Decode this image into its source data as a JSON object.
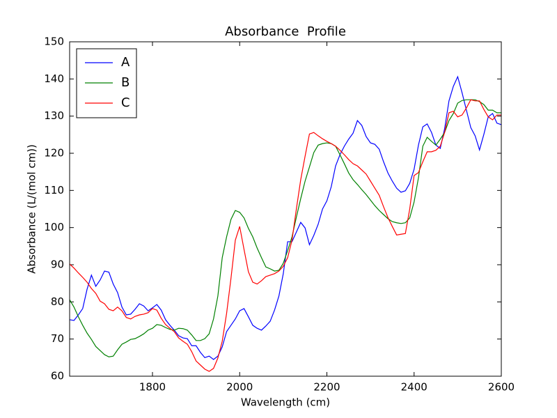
{
  "chart_data": {
    "type": "line",
    "title": "Absorbance  Profile",
    "xlabel": "Wavelength (cm)",
    "ylabel": "Absorbance (L/(mol cm))",
    "x": [
      1610,
      1620,
      1630,
      1640,
      1650,
      1660,
      1670,
      1680,
      1690,
      1700,
      1710,
      1720,
      1730,
      1740,
      1750,
      1760,
      1770,
      1780,
      1790,
      1800,
      1810,
      1820,
      1830,
      1840,
      1850,
      1860,
      1870,
      1880,
      1890,
      1900,
      1910,
      1920,
      1930,
      1940,
      1950,
      1960,
      1970,
      1980,
      1990,
      2000,
      2010,
      2020,
      2030,
      2040,
      2050,
      2060,
      2070,
      2080,
      2090,
      2100,
      2110,
      2120,
      2130,
      2140,
      2150,
      2160,
      2170,
      2180,
      2190,
      2200,
      2210,
      2220,
      2230,
      2240,
      2250,
      2260,
      2270,
      2280,
      2290,
      2300,
      2310,
      2320,
      2330,
      2340,
      2350,
      2360,
      2370,
      2380,
      2390,
      2400,
      2410,
      2420,
      2430,
      2440,
      2450,
      2460,
      2470,
      2480,
      2490,
      2500,
      2510,
      2520,
      2530,
      2540,
      2550,
      2560,
      2570,
      2580,
      2590,
      2600
    ],
    "series": [
      {
        "name": "A",
        "color": "#0000ff",
        "values": [
          75.2,
          75,
          76.5,
          78.2,
          83.4,
          87.2,
          84.2,
          85.9,
          88.3,
          88,
          84.8,
          82.5,
          78.6,
          76.5,
          76.7,
          78,
          79.5,
          78.9,
          77.6,
          78.4,
          79.3,
          77.8,
          75.2,
          73.7,
          72.4,
          70.9,
          70.3,
          70.1,
          68.2,
          68.2,
          66.4,
          65,
          65.4,
          64.5,
          65.4,
          67.9,
          72,
          73.7,
          75.4,
          77.6,
          78.2,
          76,
          73.7,
          72.9,
          72.4,
          73.5,
          74.8,
          77.8,
          81.6,
          87.6,
          96.2,
          96.2,
          98.8,
          101.4,
          99.9,
          95.4,
          97.9,
          100.9,
          105,
          107.2,
          111,
          116.6,
          119.6,
          121.9,
          123.8,
          125.4,
          128.8,
          127.5,
          124.5,
          122.8,
          122.4,
          121.1,
          117.7,
          114.7,
          112.5,
          110.6,
          109.5,
          109.9,
          111.9,
          115.7,
          122.2,
          127.1,
          127.9,
          125.6,
          122.2,
          121.3,
          126.6,
          134.1,
          138,
          140.6,
          136.3,
          131.6,
          126.9,
          124.7,
          120.9,
          125.1,
          129.8,
          130.7,
          128.1,
          127.7
        ]
      },
      {
        "name": "B",
        "color": "#008000",
        "values": [
          80.6,
          78.6,
          76,
          73.7,
          71.6,
          69.9,
          68,
          66.9,
          65.8,
          65.2,
          65.4,
          67.1,
          68.6,
          69.2,
          69.9,
          70.1,
          70.7,
          71.4,
          72.4,
          72.9,
          73.9,
          73.7,
          73.1,
          72.6,
          72.4,
          72.9,
          72.8,
          72.4,
          71.1,
          69.6,
          69.6,
          70.1,
          71.4,
          75.4,
          81.6,
          91.9,
          97.5,
          102.2,
          104.6,
          104.1,
          102.6,
          99.8,
          97.5,
          94.5,
          91.9,
          89.4,
          88.9,
          88.3,
          88.5,
          90.4,
          93.8,
          97.5,
          102.8,
          107.8,
          112.5,
          116.3,
          120.2,
          122.2,
          122.6,
          122.8,
          122.6,
          121.9,
          119.6,
          117.2,
          114.7,
          112.9,
          111.6,
          110.2,
          108.9,
          107.4,
          105.9,
          104.6,
          103.5,
          102.4,
          101.6,
          101.3,
          101.1,
          101.3,
          102.6,
          106.9,
          113.4,
          121.9,
          124.3,
          123.2,
          122.2,
          123.8,
          125.6,
          128.8,
          130.7,
          133.5,
          134.2,
          134.4,
          134.4,
          134.4,
          133.9,
          133.1,
          131.6,
          131.6,
          130.9,
          130.9
        ]
      },
      {
        "name": "C",
        "color": "#ff0000",
        "values": [
          90.2,
          89.1,
          87.8,
          86.6,
          85.3,
          83.6,
          82.3,
          80.2,
          79.5,
          78,
          77.6,
          78.6,
          77.6,
          75.8,
          75.4,
          76.1,
          76.5,
          76.7,
          77.1,
          78.2,
          77.8,
          75.6,
          73.9,
          72.9,
          72,
          70.3,
          69.4,
          68.6,
          66.6,
          64.1,
          63,
          61.9,
          61.3,
          62.1,
          64.9,
          69.4,
          76.9,
          86.3,
          96.6,
          100.3,
          94.1,
          88.1,
          85.3,
          84.8,
          85.7,
          86.8,
          87.2,
          87.6,
          88.3,
          89.6,
          91.9,
          96.6,
          105,
          112.9,
          119.2,
          125.2,
          125.6,
          124.7,
          123.9,
          123.2,
          122.6,
          121.9,
          120.8,
          119.6,
          118.3,
          117.2,
          116.6,
          115.5,
          114.4,
          112.5,
          110.6,
          108.7,
          105.6,
          102.7,
          100.3,
          98,
          98.2,
          98.4,
          105,
          114,
          114.8,
          117.7,
          120.4,
          120.4,
          120.8,
          121.9,
          125.6,
          130.9,
          131.3,
          129.8,
          130.3,
          132.2,
          134.4,
          134.1,
          134.1,
          131.8,
          129.8,
          129,
          130.3,
          130.3
        ]
      }
    ],
    "xlim": [
      1610,
      2600
    ],
    "ylim": [
      60,
      150
    ],
    "xticks": [
      1800,
      2000,
      2200,
      2400,
      2600
    ],
    "yticks": [
      60,
      70,
      80,
      90,
      100,
      110,
      120,
      130,
      140,
      150
    ],
    "legend": "upper left"
  }
}
